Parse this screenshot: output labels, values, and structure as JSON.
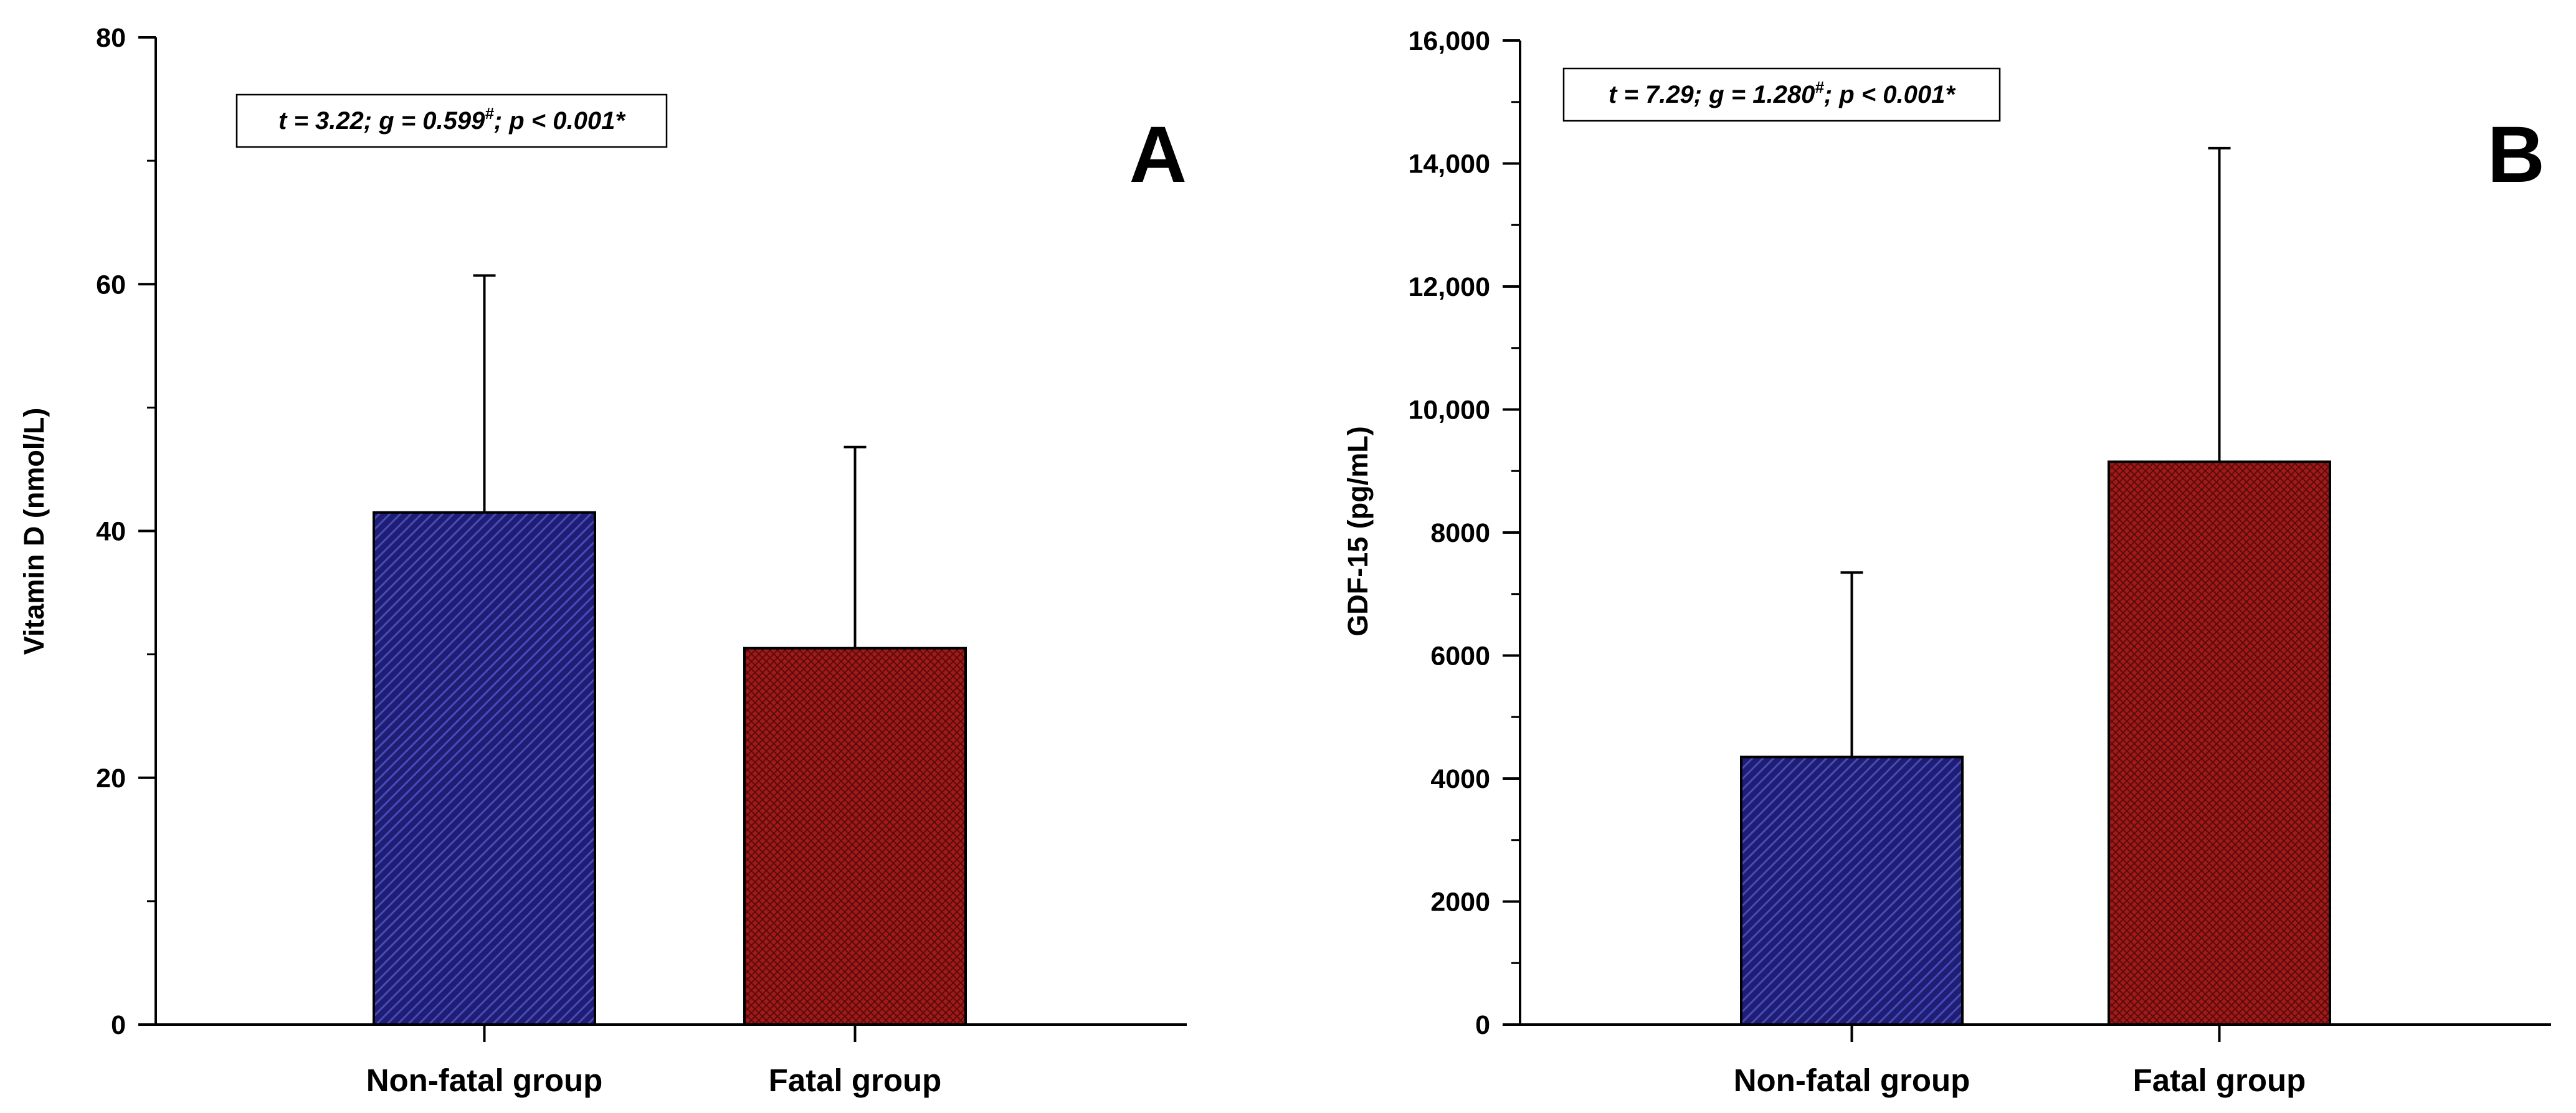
{
  "chart_data": [
    {
      "type": "bar",
      "panel": "A",
      "categories": [
        "Non-fatal group",
        "Fatal group"
      ],
      "values": [
        41.5,
        30.5
      ],
      "error_upper": [
        60.7,
        46.8
      ],
      "ylabel": "Vitamin D (nmol/L)",
      "ylim": [
        0,
        80
      ],
      "yticks": [
        0,
        20,
        40,
        60,
        80
      ],
      "ytick_labels": [
        "0",
        "20",
        "40",
        "60",
        "80"
      ],
      "annotation": {
        "pre": "t = 3.22; g = 0.599",
        "sup": "#",
        "post": "; p < 0.001*"
      },
      "colors": {
        "Non-fatal group": "#1e1e74",
        "Fatal group": "#a01a1a"
      }
    },
    {
      "type": "bar",
      "panel": "B",
      "categories": [
        "Non-fatal group",
        "Fatal group"
      ],
      "values": [
        4350,
        9150
      ],
      "error_upper": [
        7350,
        14250
      ],
      "ylabel": "GDF-15 (pg/mL)",
      "ylim": [
        0,
        16000
      ],
      "yticks": [
        0,
        2000,
        4000,
        6000,
        8000,
        10000,
        12000,
        14000,
        16000
      ],
      "ytick_labels": [
        "0",
        "2000",
        "4000",
        "6000",
        "8000",
        "10,000",
        "12,000",
        "14,000",
        "16,000"
      ],
      "annotation": {
        "pre": "t = 7.29; g = 1.280",
        "sup": "#",
        "post": "; p < 0.001*"
      },
      "colors": {
        "Non-fatal group": "#1e1e74",
        "Fatal group": "#a01a1a"
      }
    }
  ]
}
